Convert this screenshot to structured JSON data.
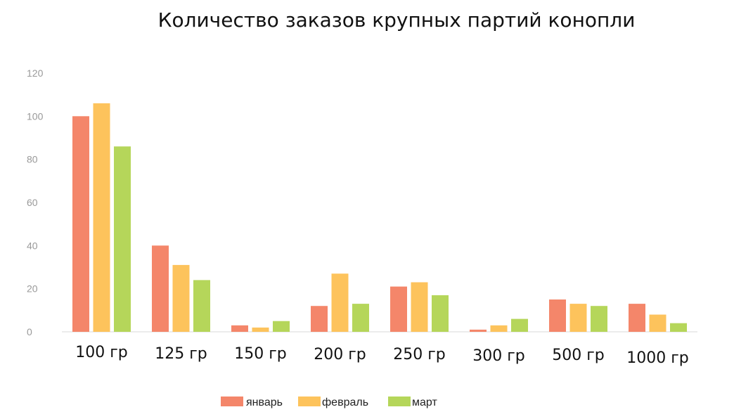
{
  "chart_data": {
    "type": "bar",
    "title": "Количество заказов крупных партий конопли",
    "categories": [
      "100 гр",
      "125 гр",
      "150 гр",
      "200 гр",
      "250 гр",
      "300 гр",
      "500 гр",
      "1000 гр"
    ],
    "series": [
      {
        "name": "январь",
        "color": "#f4866a",
        "values": [
          100,
          40,
          3,
          12,
          21,
          1,
          15,
          13
        ]
      },
      {
        "name": "февраль",
        "color": "#fdc35c",
        "values": [
          106,
          31,
          2,
          27,
          23,
          3,
          13,
          8
        ]
      },
      {
        "name": "март",
        "color": "#b5d65a",
        "values": [
          86,
          24,
          5,
          13,
          17,
          6,
          12,
          4
        ]
      }
    ],
    "ylim": [
      0,
      120
    ],
    "yticks": [
      0,
      20,
      40,
      60,
      80,
      100,
      120
    ],
    "grid": false,
    "legend_position": "bottom"
  }
}
